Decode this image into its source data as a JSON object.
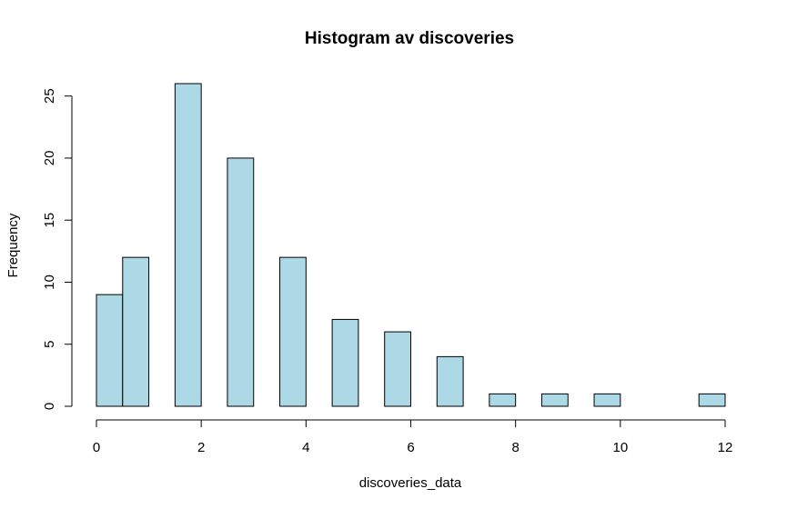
{
  "chart_data": {
    "type": "bar",
    "title": "Histogram av discoveries",
    "xlabel": "discoveries_data",
    "ylabel": "Frequency",
    "bins": [
      {
        "x0": 0.0,
        "x1": 0.5,
        "count": 9
      },
      {
        "x0": 0.5,
        "x1": 1.0,
        "count": 12
      },
      {
        "x0": 1.0,
        "x1": 1.5,
        "count": 0
      },
      {
        "x0": 1.5,
        "x1": 2.0,
        "count": 26
      },
      {
        "x0": 2.0,
        "x1": 2.5,
        "count": 0
      },
      {
        "x0": 2.5,
        "x1": 3.0,
        "count": 20
      },
      {
        "x0": 3.0,
        "x1": 3.5,
        "count": 0
      },
      {
        "x0": 3.5,
        "x1": 4.0,
        "count": 12
      },
      {
        "x0": 4.0,
        "x1": 4.5,
        "count": 0
      },
      {
        "x0": 4.5,
        "x1": 5.0,
        "count": 7
      },
      {
        "x0": 5.0,
        "x1": 5.5,
        "count": 0
      },
      {
        "x0": 5.5,
        "x1": 6.0,
        "count": 6
      },
      {
        "x0": 6.0,
        "x1": 6.5,
        "count": 0
      },
      {
        "x0": 6.5,
        "x1": 7.0,
        "count": 4
      },
      {
        "x0": 7.0,
        "x1": 7.5,
        "count": 0
      },
      {
        "x0": 7.5,
        "x1": 8.0,
        "count": 1
      },
      {
        "x0": 8.0,
        "x1": 8.5,
        "count": 0
      },
      {
        "x0": 8.5,
        "x1": 9.0,
        "count": 1
      },
      {
        "x0": 9.0,
        "x1": 9.5,
        "count": 0
      },
      {
        "x0": 9.5,
        "x1": 10.0,
        "count": 1
      },
      {
        "x0": 10.0,
        "x1": 10.5,
        "count": 0
      },
      {
        "x0": 10.5,
        "x1": 11.0,
        "count": 0
      },
      {
        "x0": 11.0,
        "x1": 11.5,
        "count": 0
      },
      {
        "x0": 11.5,
        "x1": 12.0,
        "count": 1
      }
    ],
    "xlim": [
      0,
      12
    ],
    "ylim": [
      0,
      26
    ],
    "xticks": [
      0,
      2,
      4,
      6,
      8,
      10,
      12
    ],
    "yticks": [
      0,
      5,
      10,
      15,
      20,
      25
    ],
    "bar_color": "#add8e6",
    "border_color": "#000000",
    "grid": false,
    "legend": "none"
  }
}
